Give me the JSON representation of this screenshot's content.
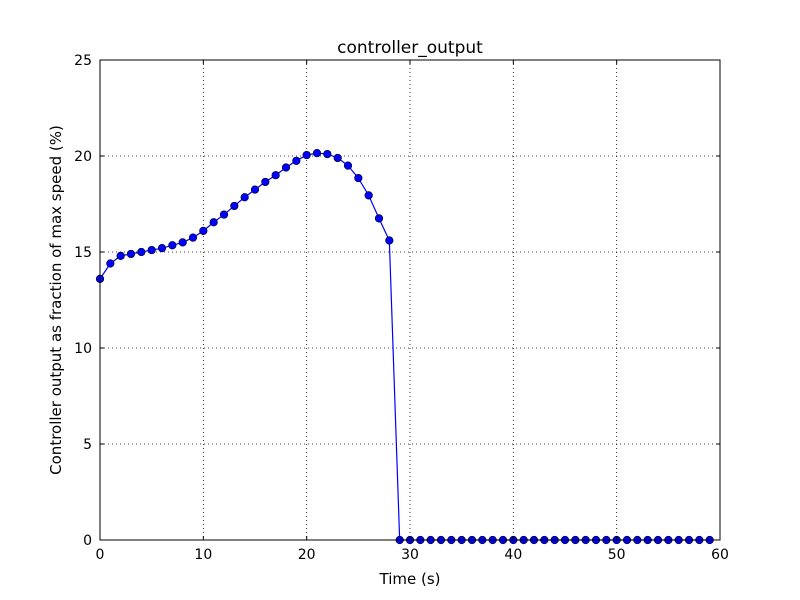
{
  "chart_data": {
    "type": "line",
    "title": "controller_output",
    "xlabel": "Time (s)",
    "ylabel": "Controller output as fraction of max speed (%)",
    "xlim": [
      0,
      60
    ],
    "ylim": [
      0,
      25
    ],
    "xticks": [
      0,
      10,
      20,
      30,
      40,
      50,
      60
    ],
    "yticks": [
      0,
      5,
      10,
      15,
      20,
      25
    ],
    "grid": true,
    "series": [
      {
        "color": "#0000ff",
        "marker": "circle",
        "x": [
          0,
          1,
          2,
          3,
          4,
          5,
          6,
          7,
          8,
          9,
          10,
          11,
          12,
          13,
          14,
          15,
          16,
          17,
          18,
          19,
          20,
          21,
          22,
          23,
          24,
          25,
          26,
          27,
          28,
          29,
          30,
          31,
          32,
          33,
          34,
          35,
          36,
          37,
          38,
          39,
          40,
          41,
          42,
          43,
          44,
          45,
          46,
          47,
          48,
          49,
          50,
          51,
          52,
          53,
          54,
          55,
          56,
          57,
          58,
          59
        ],
        "y": [
          13.6,
          14.4,
          14.8,
          14.9,
          15.0,
          15.1,
          15.2,
          15.35,
          15.5,
          15.75,
          16.1,
          16.55,
          16.95,
          17.4,
          17.85,
          18.25,
          18.65,
          19.0,
          19.4,
          19.75,
          20.05,
          20.15,
          20.1,
          19.9,
          19.5,
          18.85,
          17.95,
          16.75,
          15.6,
          0,
          0,
          0,
          0,
          0,
          0,
          0,
          0,
          0,
          0,
          0,
          0,
          0,
          0,
          0,
          0,
          0,
          0,
          0,
          0,
          0,
          0,
          0,
          0,
          0,
          0,
          0,
          0,
          0,
          0,
          0
        ]
      }
    ]
  }
}
